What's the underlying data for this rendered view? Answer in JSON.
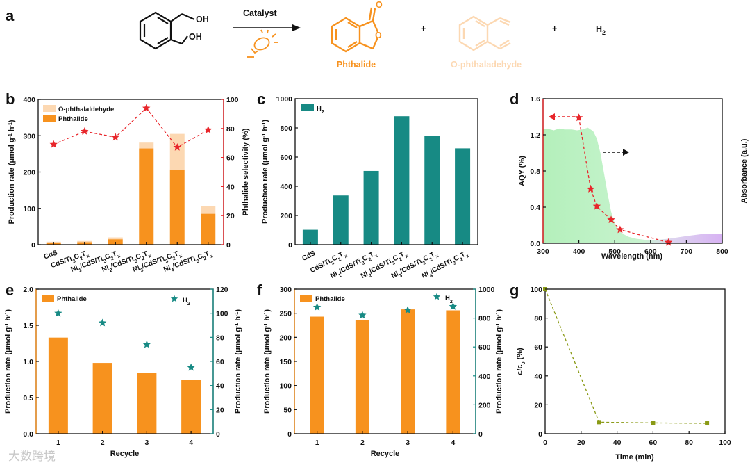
{
  "colors": {
    "orange": "#f7921e",
    "peach": "#fcd8b2",
    "teal": "#178a84",
    "red": "#e8262b",
    "olive": "#8a9a16",
    "green": "#b5f0bd",
    "purple": "#d9b6f2",
    "ink": "#111111"
  },
  "scheme": {
    "panel_label": "a",
    "reactant_labels": [
      "OH",
      "OH"
    ],
    "arrow_label": "Catalyst",
    "product1_name": "Phthalide",
    "product1_atom": "O",
    "plus": "+",
    "product2_name": "O-phthaladehyde",
    "product3": "H",
    "product3_sub": "2"
  },
  "watermark": "大数跨境",
  "chart_data": [
    {
      "id": "b",
      "panel_label": "b",
      "type": "bar",
      "categories": [
        "CdS",
        "CdS/Ti3C2Tx",
        "Ni1/CdS/Ti3C2Tx",
        "Ni2/CdS/Ti3C2Tx",
        "Ni3/CdS/Ti3C2Tx",
        "Ni4/CdS/Ti3C2Tx"
      ],
      "category_labels": [
        [
          [
            "CdS",
            ""
          ]
        ],
        [
          [
            "CdS/Ti",
            ""
          ],
          [
            "3",
            "sub"
          ],
          [
            "C",
            ""
          ],
          [
            "2",
            "sub"
          ],
          [
            "T",
            ""
          ],
          [
            "x",
            "sub"
          ]
        ],
        [
          [
            "Ni",
            ""
          ],
          [
            "1",
            "sub"
          ],
          [
            "/CdS/Ti",
            ""
          ],
          [
            "3",
            "sub"
          ],
          [
            "C",
            ""
          ],
          [
            "2",
            "sub"
          ],
          [
            "T",
            ""
          ],
          [
            "x",
            "sub"
          ]
        ],
        [
          [
            "Ni",
            ""
          ],
          [
            "2",
            "sub"
          ],
          [
            "/CdS/Ti",
            ""
          ],
          [
            "3",
            "sub"
          ],
          [
            "C",
            ""
          ],
          [
            "2",
            "sub"
          ],
          [
            "T",
            ""
          ],
          [
            "x",
            "sub"
          ]
        ],
        [
          [
            "Ni",
            ""
          ],
          [
            "3",
            "sub"
          ],
          [
            "/CdS/Ti",
            ""
          ],
          [
            "3",
            "sub"
          ],
          [
            "C",
            ""
          ],
          [
            "2",
            "sub"
          ],
          [
            "T",
            ""
          ],
          [
            "x",
            "sub"
          ]
        ],
        [
          [
            "Ni",
            ""
          ],
          [
            "4",
            "sub"
          ],
          [
            "/CdS/Ti",
            ""
          ],
          [
            "3",
            "sub"
          ],
          [
            "C",
            ""
          ],
          [
            "2",
            "sub"
          ],
          [
            "T",
            ""
          ],
          [
            "x",
            "sub"
          ]
        ]
      ],
      "series": [
        {
          "name": "Phthalide",
          "values": [
            5,
            7,
            15,
            265,
            207,
            85
          ]
        },
        {
          "name": "O-phthalaldehyde",
          "values": [
            3,
            3,
            5,
            16,
            98,
            22
          ]
        }
      ],
      "right_series": {
        "name": "Phthalide selectivity (%)",
        "values": [
          69,
          78,
          74,
          94,
          67,
          79
        ]
      },
      "ylim": [
        0,
        400
      ],
      "yticks": [
        0,
        100,
        200,
        300,
        400
      ],
      "ylabel": [
        [
          "Production rate (μmol g",
          ""
        ],
        [
          "-1",
          "sup"
        ],
        [
          " h",
          ""
        ],
        [
          "-1",
          "sup"
        ],
        [
          ")",
          ""
        ]
      ],
      "y2lim": [
        0,
        100
      ],
      "y2ticks": [
        0,
        20,
        40,
        60,
        80,
        100
      ],
      "y2label": "Phthalide selectivity (%)",
      "legend": [
        "O-phthalaldehyde",
        "Phthalide"
      ]
    },
    {
      "id": "c",
      "panel_label": "c",
      "type": "bar",
      "categories": [
        "CdS",
        "CdS/Ti3C2Tx",
        "Ni1/CdS/Ti3C2Tx",
        "Ni2/CdS/Ti3C2Tx",
        "Ni3/CdS/Ti3C2Tx",
        "Ni4/CdS/Ti3C2Tx"
      ],
      "category_labels": [
        [
          [
            "CdS",
            ""
          ]
        ],
        [
          [
            "CdS/Ti",
            ""
          ],
          [
            "3",
            "sub"
          ],
          [
            "C",
            ""
          ],
          [
            "2",
            "sub"
          ],
          [
            "T",
            ""
          ],
          [
            "x",
            "sub"
          ]
        ],
        [
          [
            "Ni",
            ""
          ],
          [
            "1",
            "sub"
          ],
          [
            "/CdS/Ti",
            ""
          ],
          [
            "3",
            "sub"
          ],
          [
            "C",
            ""
          ],
          [
            "2",
            "sub"
          ],
          [
            "T",
            ""
          ],
          [
            "x",
            "sub"
          ]
        ],
        [
          [
            "Ni",
            ""
          ],
          [
            "2",
            "sub"
          ],
          [
            "/CdS/Ti",
            ""
          ],
          [
            "3",
            "sub"
          ],
          [
            "C",
            ""
          ],
          [
            "2",
            "sub"
          ],
          [
            "T",
            ""
          ],
          [
            "x",
            "sub"
          ]
        ],
        [
          [
            "Ni",
            ""
          ],
          [
            "3",
            "sub"
          ],
          [
            "/CdS/Ti",
            ""
          ],
          [
            "3",
            "sub"
          ],
          [
            "C",
            ""
          ],
          [
            "2",
            "sub"
          ],
          [
            "T",
            ""
          ],
          [
            "x",
            "sub"
          ]
        ],
        [
          [
            "Ni",
            ""
          ],
          [
            "4",
            "sub"
          ],
          [
            "/CdS/Ti",
            ""
          ],
          [
            "3",
            "sub"
          ],
          [
            "C",
            ""
          ],
          [
            "2",
            "sub"
          ],
          [
            "T",
            ""
          ],
          [
            "x",
            "sub"
          ]
        ]
      ],
      "series": [
        {
          "name": "H2",
          "values": [
            102,
            337,
            505,
            880,
            745,
            660
          ]
        }
      ],
      "ylim": [
        0,
        1000
      ],
      "yticks": [
        0,
        200,
        400,
        600,
        800,
        1000
      ],
      "ylabel": [
        [
          "Production rate (μmol g",
          ""
        ],
        [
          "-1",
          "sup"
        ],
        [
          " h",
          ""
        ],
        [
          "-1",
          "sup"
        ],
        [
          ")",
          ""
        ]
      ],
      "legend": [
        [
          [
            "H",
            ""
          ],
          [
            "2",
            "sub"
          ]
        ]
      ]
    },
    {
      "id": "d",
      "panel_label": "d",
      "type": "scatter",
      "x": [
        400,
        433,
        450,
        490,
        515,
        650
      ],
      "y": [
        1.39,
        0.6,
        0.41,
        0.26,
        0.15,
        0.01
      ],
      "absorbance_curve": [
        [
          300,
          1.26
        ],
        [
          310,
          1.27
        ],
        [
          330,
          1.25
        ],
        [
          345,
          1.27
        ],
        [
          360,
          1.26
        ],
        [
          380,
          1.26
        ],
        [
          395,
          1.25
        ],
        [
          410,
          1.26
        ],
        [
          425,
          1.28
        ],
        [
          440,
          1.24
        ],
        [
          450,
          1.16
        ],
        [
          460,
          1.0
        ],
        [
          470,
          0.78
        ],
        [
          480,
          0.55
        ],
        [
          490,
          0.35
        ],
        [
          500,
          0.22
        ],
        [
          510,
          0.15
        ],
        [
          520,
          0.11
        ],
        [
          540,
          0.07
        ],
        [
          560,
          0.05
        ],
        [
          600,
          0.03
        ],
        [
          650,
          0.05
        ],
        [
          700,
          0.08
        ],
        [
          740,
          0.1
        ],
        [
          760,
          0.1
        ],
        [
          800,
          0.1
        ]
      ],
      "xlim": [
        300,
        800
      ],
      "xticks": [
        300,
        400,
        500,
        600,
        700,
        800
      ],
      "ylim": [
        0,
        1.6
      ],
      "yticks": [
        "0.0",
        "0.4",
        "0.8",
        "1.2",
        "1.6"
      ],
      "xlabel": "Wavelength (nm)",
      "ylabel": "AQY (%)",
      "y2label": "Absorbance (a.u.)"
    },
    {
      "id": "e",
      "panel_label": "e",
      "type": "bar",
      "categories": [
        "1",
        "2",
        "3",
        "4"
      ],
      "series": [
        {
          "name": "Phthalide",
          "values": [
            1.33,
            0.98,
            0.84,
            0.75
          ]
        }
      ],
      "right_series": {
        "name": "H2",
        "values": [
          100,
          92,
          74,
          55
        ]
      },
      "ylim": [
        0,
        2.0
      ],
      "yticks": [
        "0.0",
        "0.5",
        "1.0",
        "1.5",
        "2.0"
      ],
      "y2lim": [
        0,
        120
      ],
      "y2ticks": [
        0,
        20,
        40,
        60,
        80,
        100,
        120
      ],
      "xlabel": "Recycle",
      "ylabel": [
        [
          "Production rate (μmol g",
          ""
        ],
        [
          "-1",
          "sup"
        ],
        [
          " h",
          ""
        ],
        [
          "-1",
          "sup"
        ],
        [
          ")",
          ""
        ]
      ],
      "y2label": [
        [
          "Production rate (μmol g",
          ""
        ],
        [
          "-1",
          "sup"
        ],
        [
          " h",
          ""
        ],
        [
          "-1",
          "sup"
        ],
        [
          ")",
          ""
        ]
      ],
      "legend": [
        "Phthalide",
        [
          [
            "H",
            ""
          ],
          [
            "2",
            "sub"
          ]
        ]
      ]
    },
    {
      "id": "f",
      "panel_label": "f",
      "type": "bar",
      "categories": [
        "1",
        "2",
        "3",
        "4"
      ],
      "series": [
        {
          "name": "Phthalide",
          "values": [
            243,
            236,
            258,
            256
          ]
        }
      ],
      "right_series": {
        "name": "H2",
        "values": [
          875,
          820,
          855,
          880
        ]
      },
      "ylim": [
        0,
        300
      ],
      "yticks": [
        0,
        50,
        100,
        150,
        200,
        250,
        300
      ],
      "y2lim": [
        0,
        1000
      ],
      "y2ticks": [
        0,
        200,
        400,
        600,
        800,
        1000
      ],
      "xlabel": "Recycle",
      "ylabel": [
        [
          "Production rate (μmol g",
          ""
        ],
        [
          "-1",
          "sup"
        ],
        [
          " h",
          ""
        ],
        [
          "-1",
          "sup"
        ],
        [
          ")",
          ""
        ]
      ],
      "y2label": [
        [
          "Production rate (μmol g",
          ""
        ],
        [
          "-1",
          "sup"
        ],
        [
          " h",
          ""
        ],
        [
          "-1",
          "sup"
        ],
        [
          ")",
          ""
        ]
      ],
      "legend": [
        "Phthalide",
        [
          [
            "H",
            ""
          ],
          [
            "2",
            "sub"
          ]
        ]
      ]
    },
    {
      "id": "g",
      "panel_label": "g",
      "type": "line",
      "x": [
        0,
        30,
        60,
        90
      ],
      "y": [
        100,
        8,
        7.5,
        7.2
      ],
      "xlim": [
        0,
        100
      ],
      "xticks": [
        0,
        20,
        40,
        60,
        80,
        100
      ],
      "ylim": [
        0,
        100
      ],
      "yticks": [
        0,
        20,
        40,
        60,
        80,
        100
      ],
      "xlabel": "Time (min)",
      "ylabel": [
        [
          "c/c",
          ""
        ],
        [
          "0",
          "sub"
        ],
        [
          " (%)",
          ""
        ]
      ]
    }
  ]
}
